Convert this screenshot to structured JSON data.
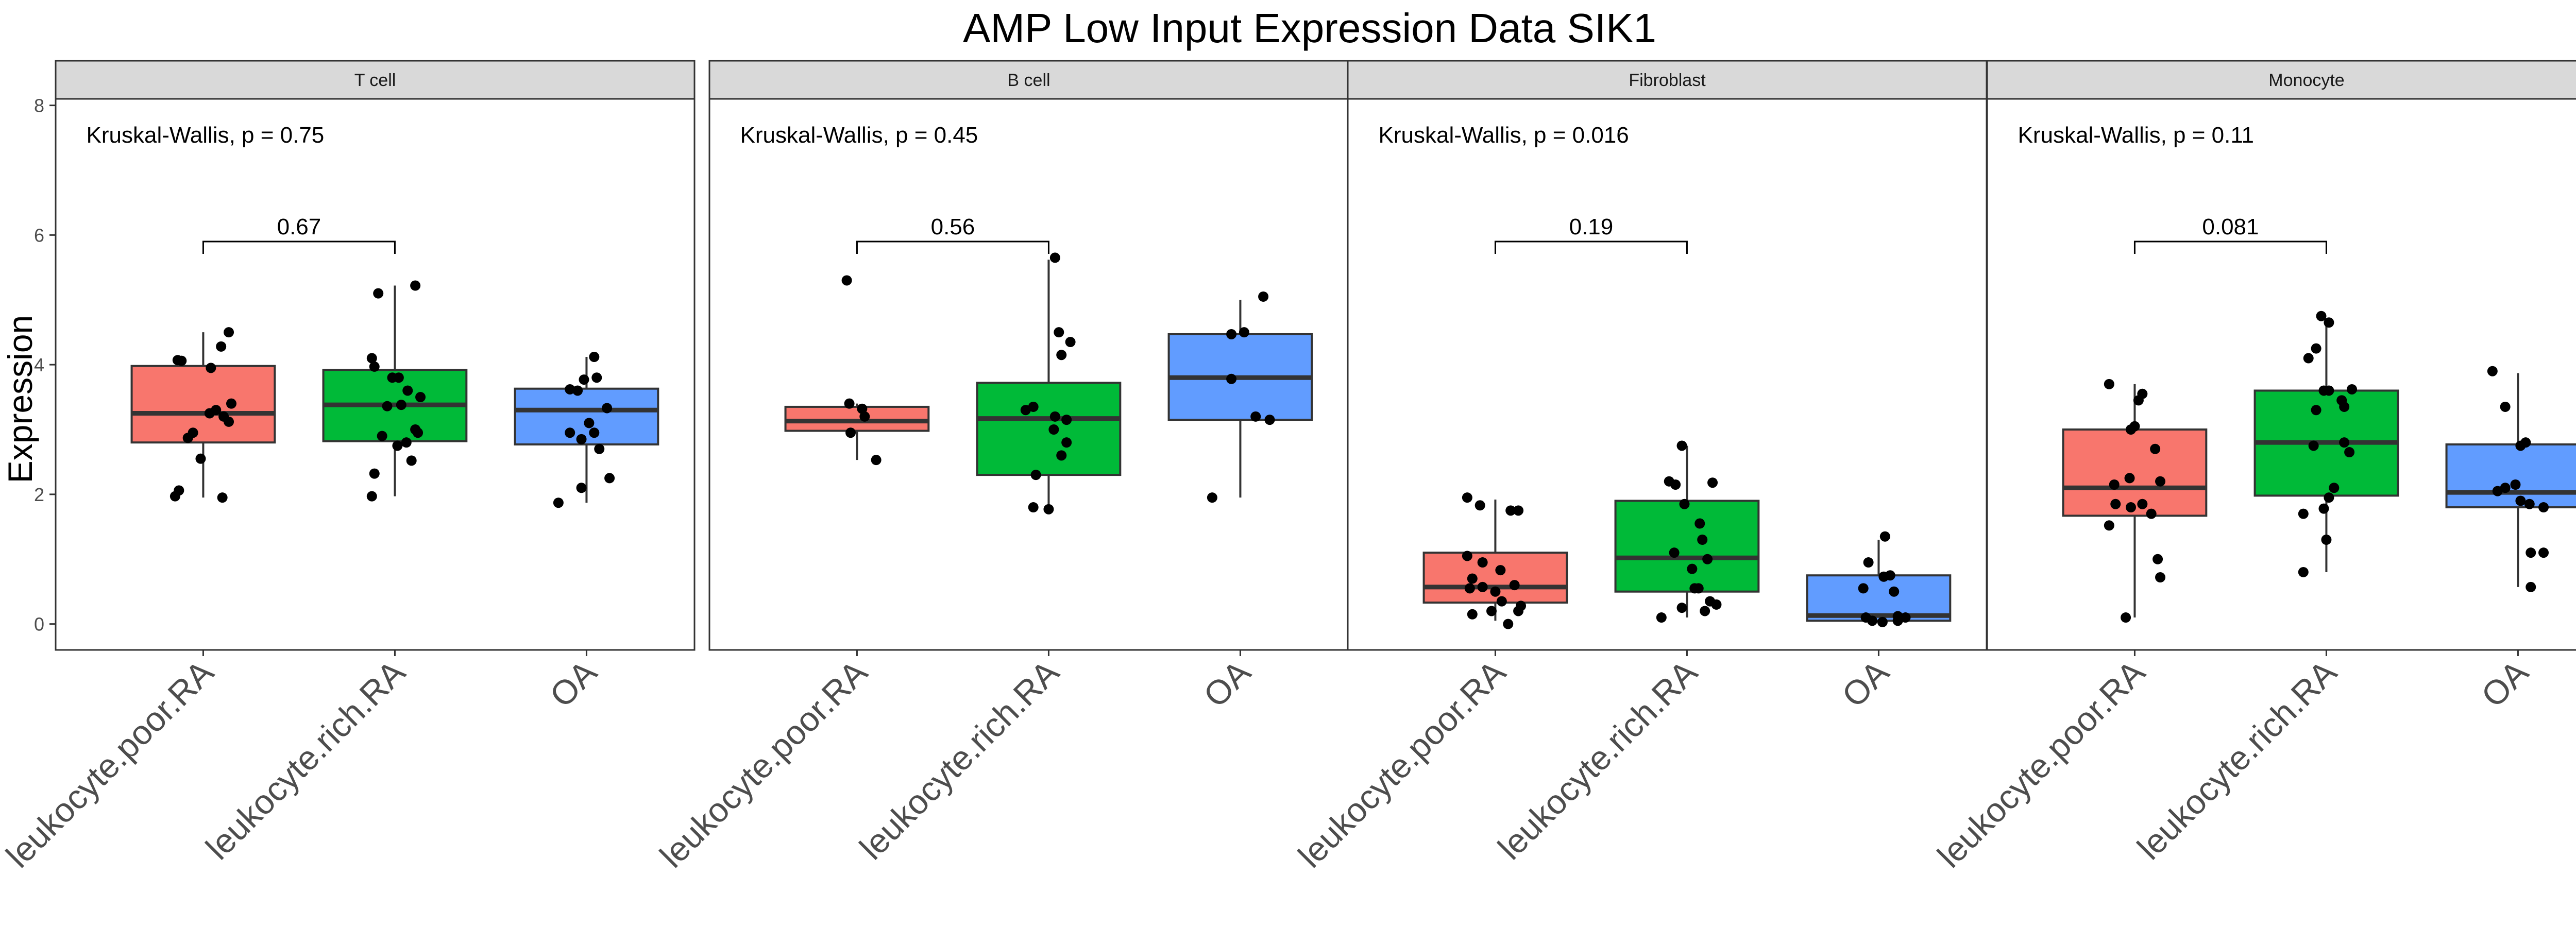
{
  "colors": {
    "leukocyte.poor.RA": "#F8766D",
    "leukocyte.rich.RA": "#00BA38",
    "OA": "#619CFF",
    "strip_fill": "#D9D9D9",
    "panel_border": "#333333",
    "point": "#000000"
  },
  "chart_data": {
    "type": "box",
    "title": "AMP Low Input Expression Data SIK1",
    "ylabel": "Expression",
    "xlabel": "",
    "ylim": [
      -0.4,
      8.1
    ],
    "yticks": [
      0,
      2,
      4,
      6,
      8
    ],
    "categories": [
      "leukocyte.poor.RA",
      "leukocyte.rich.RA",
      "OA"
    ],
    "grid": false,
    "legend": "none",
    "panels": [
      {
        "name": "T cell",
        "test_label": "Kruskal-Wallis, p = 0.75",
        "pairwise": {
          "from": "leukocyte.poor.RA",
          "to": "leukocyte.rich.RA",
          "label": "0.67",
          "y": 5.9
        },
        "boxes": [
          {
            "group": "leukocyte.poor.RA",
            "min": 1.95,
            "q1": 2.8,
            "median": 3.25,
            "q3": 3.98,
            "max": 4.5,
            "points": [
              [
                -0.22,
                1.97
              ],
              [
                -0.19,
                2.06
              ],
              [
                -0.12,
                2.87
              ],
              [
                -0.08,
                2.95
              ],
              [
                -0.02,
                2.55
              ],
              [
                0.05,
                3.25
              ],
              [
                0.1,
                3.3
              ],
              [
                0.16,
                3.2
              ],
              [
                0.2,
                3.12
              ],
              [
                0.22,
                3.4
              ],
              [
                -0.2,
                4.07
              ],
              [
                0.06,
                3.95
              ],
              [
                0.14,
                4.28
              ],
              [
                0.2,
                4.5
              ],
              [
                0.15,
                1.95
              ],
              [
                -0.17,
                4.06
              ]
            ]
          },
          {
            "group": "leukocyte.rich.RA",
            "min": 1.97,
            "q1": 2.82,
            "median": 3.38,
            "q3": 3.92,
            "max": 5.22,
            "points": [
              [
                -0.18,
                4.1
              ],
              [
                -0.13,
                5.1
              ],
              [
                -0.16,
                2.32
              ],
              [
                -0.18,
                1.97
              ],
              [
                -0.1,
                2.9
              ],
              [
                -0.06,
                3.36
              ],
              [
                -0.02,
                3.8
              ],
              [
                0.03,
                3.8
              ],
              [
                0.05,
                3.38
              ],
              [
                0.02,
                2.75
              ],
              [
                0.09,
                2.8
              ],
              [
                0.13,
                2.52
              ],
              [
                0.16,
                3.0
              ],
              [
                0.18,
                2.95
              ],
              [
                0.2,
                3.5
              ],
              [
                0.16,
                5.22
              ],
              [
                -0.16,
                3.97
              ],
              [
                0.1,
                3.6
              ]
            ]
          },
          {
            "group": "OA",
            "min": 1.87,
            "q1": 2.77,
            "median": 3.3,
            "q3": 3.63,
            "max": 4.12,
            "points": [
              [
                -0.22,
                1.87
              ],
              [
                -0.04,
                2.1
              ],
              [
                0.18,
                2.25
              ],
              [
                0.1,
                2.7
              ],
              [
                -0.04,
                2.85
              ],
              [
                0.06,
                2.95
              ],
              [
                -0.13,
                2.95
              ],
              [
                0.02,
                3.1
              ],
              [
                0.16,
                3.33
              ],
              [
                -0.07,
                3.6
              ],
              [
                -0.13,
                3.62
              ],
              [
                0.08,
                3.8
              ],
              [
                -0.02,
                3.77
              ],
              [
                0.06,
                4.12
              ]
            ]
          }
        ]
      },
      {
        "name": "B cell",
        "test_label": "Kruskal-Wallis, p = 0.45",
        "pairwise": {
          "from": "leukocyte.poor.RA",
          "to": "leukocyte.rich.RA",
          "label": "0.56",
          "y": 5.9
        },
        "boxes": [
          {
            "group": "leukocyte.poor.RA",
            "min": 2.53,
            "q1": 2.98,
            "median": 3.13,
            "q3": 3.35,
            "max": 3.4,
            "points": [
              [
                -0.08,
                5.3
              ],
              [
                -0.06,
                3.4
              ],
              [
                0.04,
                3.32
              ],
              [
                0.06,
                3.2
              ],
              [
                -0.05,
                2.95
              ],
              [
                0.15,
                2.53
              ]
            ]
          },
          {
            "group": "leukocyte.rich.RA",
            "min": 1.77,
            "q1": 2.3,
            "median": 3.17,
            "q3": 3.72,
            "max": 5.62,
            "points": [
              [
                -0.12,
                1.8
              ],
              [
                0.0,
                1.77
              ],
              [
                -0.1,
                2.3
              ],
              [
                0.1,
                2.6
              ],
              [
                0.14,
                2.8
              ],
              [
                -0.12,
                3.35
              ],
              [
                0.05,
                3.2
              ],
              [
                0.14,
                3.15
              ],
              [
                0.04,
                3.0
              ],
              [
                0.08,
                4.5
              ],
              [
                0.17,
                4.35
              ],
              [
                0.05,
                5.65
              ],
              [
                0.1,
                4.15
              ],
              [
                -0.18,
                3.3
              ]
            ]
          },
          {
            "group": "OA",
            "min": 1.95,
            "q1": 3.15,
            "median": 3.8,
            "q3": 4.47,
            "max": 5.0,
            "points": [
              [
                -0.22,
                1.95
              ],
              [
                -0.07,
                3.78
              ],
              [
                -0.07,
                4.47
              ],
              [
                0.03,
                4.5
              ],
              [
                0.12,
                3.2
              ],
              [
                0.23,
                3.15
              ],
              [
                0.18,
                5.05
              ]
            ]
          }
        ]
      },
      {
        "name": "Fibroblast",
        "test_label": "Kruskal-Wallis, p = 0.016",
        "pairwise": {
          "from": "leukocyte.poor.RA",
          "to": "leukocyte.rich.RA",
          "label": "0.19",
          "y": 5.9
        },
        "boxes": [
          {
            "group": "leukocyte.poor.RA",
            "min": 0.05,
            "q1": 0.33,
            "median": 0.57,
            "q3": 1.1,
            "max": 1.92,
            "points": [
              [
                -0.22,
                1.95
              ],
              [
                -0.12,
                1.83
              ],
              [
                0.12,
                1.75
              ],
              [
                0.18,
                1.75
              ],
              [
                -0.22,
                1.05
              ],
              [
                -0.1,
                0.95
              ],
              [
                0.04,
                0.83
              ],
              [
                -0.18,
                0.7
              ],
              [
                -0.2,
                0.55
              ],
              [
                -0.1,
                0.57
              ],
              [
                0.0,
                0.5
              ],
              [
                0.05,
                0.35
              ],
              [
                0.15,
                0.6
              ],
              [
                -0.18,
                0.15
              ],
              [
                -0.03,
                0.2
              ],
              [
                0.18,
                0.2
              ],
              [
                0.2,
                0.28
              ],
              [
                0.1,
                0.0
              ]
            ]
          },
          {
            "group": "leukocyte.rich.RA",
            "min": 0.1,
            "q1": 0.5,
            "median": 1.02,
            "q3": 1.9,
            "max": 2.75,
            "points": [
              [
                -0.04,
                2.75
              ],
              [
                -0.14,
                2.2
              ],
              [
                -0.09,
                2.15
              ],
              [
                0.2,
                2.18
              ],
              [
                -0.02,
                1.85
              ],
              [
                0.1,
                1.55
              ],
              [
                0.12,
                1.3
              ],
              [
                0.16,
                1.0
              ],
              [
                0.04,
                0.85
              ],
              [
                -0.1,
                1.1
              ],
              [
                0.06,
                0.55
              ],
              [
                0.09,
                0.55
              ],
              [
                0.18,
                0.35
              ],
              [
                0.23,
                0.3
              ],
              [
                -0.04,
                0.25
              ],
              [
                0.14,
                0.2
              ],
              [
                -0.2,
                0.1
              ]
            ]
          },
          {
            "group": "OA",
            "min": 0.02,
            "q1": 0.05,
            "median": 0.13,
            "q3": 0.75,
            "max": 1.3,
            "points": [
              [
                0.05,
                1.35
              ],
              [
                -0.08,
                0.95
              ],
              [
                0.09,
                0.75
              ],
              [
                0.04,
                0.73
              ],
              [
                -0.12,
                0.55
              ],
              [
                0.12,
                0.5
              ],
              [
                -0.1,
                0.1
              ],
              [
                -0.05,
                0.05
              ],
              [
                0.03,
                0.03
              ],
              [
                0.15,
                0.12
              ],
              [
                0.21,
                0.1
              ],
              [
                0.15,
                0.05
              ]
            ]
          }
        ]
      },
      {
        "name": "Monocyte",
        "test_label": "Kruskal-Wallis, p = 0.11",
        "pairwise": {
          "from": "leukocyte.poor.RA",
          "to": "leukocyte.rich.RA",
          "label": "0.081",
          "y": 5.9
        },
        "boxes": [
          {
            "group": "leukocyte.poor.RA",
            "min": 0.1,
            "q1": 1.67,
            "median": 2.1,
            "q3": 3.0,
            "max": 3.7,
            "points": [
              [
                -0.2,
                3.7
              ],
              [
                0.06,
                3.55
              ],
              [
                0.03,
                3.45
              ],
              [
                0.0,
                3.05
              ],
              [
                -0.03,
                3.0
              ],
              [
                0.16,
                2.7
              ],
              [
                -0.16,
                2.15
              ],
              [
                -0.04,
                2.25
              ],
              [
                0.2,
                2.2
              ],
              [
                -0.15,
                1.85
              ],
              [
                -0.03,
                1.8
              ],
              [
                0.06,
                1.85
              ],
              [
                0.13,
                1.7
              ],
              [
                -0.2,
                1.52
              ],
              [
                0.18,
                1.0
              ],
              [
                0.2,
                0.72
              ],
              [
                -0.07,
                0.1
              ]
            ]
          },
          {
            "group": "leukocyte.rich.RA",
            "min": 0.8,
            "q1": 1.98,
            "median": 2.8,
            "q3": 3.6,
            "max": 4.7,
            "points": [
              [
                -0.04,
                4.75
              ],
              [
                0.02,
                4.65
              ],
              [
                -0.08,
                4.25
              ],
              [
                -0.14,
                4.1
              ],
              [
                0.02,
                3.6
              ],
              [
                -0.02,
                3.6
              ],
              [
                0.2,
                3.62
              ],
              [
                0.12,
                3.45
              ],
              [
                0.14,
                3.35
              ],
              [
                -0.08,
                3.3
              ],
              [
                -0.1,
                2.75
              ],
              [
                0.14,
                2.8
              ],
              [
                0.18,
                2.65
              ],
              [
                0.06,
                2.1
              ],
              [
                0.02,
                1.95
              ],
              [
                -0.02,
                1.78
              ],
              [
                -0.18,
                1.7
              ],
              [
                0.0,
                1.3
              ],
              [
                -0.18,
                0.8
              ]
            ]
          },
          {
            "group": "OA",
            "min": 0.57,
            "q1": 1.8,
            "median": 2.03,
            "q3": 2.77,
            "max": 3.87,
            "points": [
              [
                -0.2,
                3.9
              ],
              [
                -0.1,
                3.35
              ],
              [
                -0.1,
                2.1
              ],
              [
                0.02,
                2.75
              ],
              [
                0.06,
                2.8
              ],
              [
                -0.02,
                2.15
              ],
              [
                -0.16,
                2.05
              ],
              [
                0.02,
                1.9
              ],
              [
                0.09,
                1.85
              ],
              [
                0.2,
                1.8
              ],
              [
                0.1,
                1.1
              ],
              [
                0.2,
                1.1
              ],
              [
                0.1,
                0.57
              ]
            ]
          }
        ]
      }
    ]
  }
}
